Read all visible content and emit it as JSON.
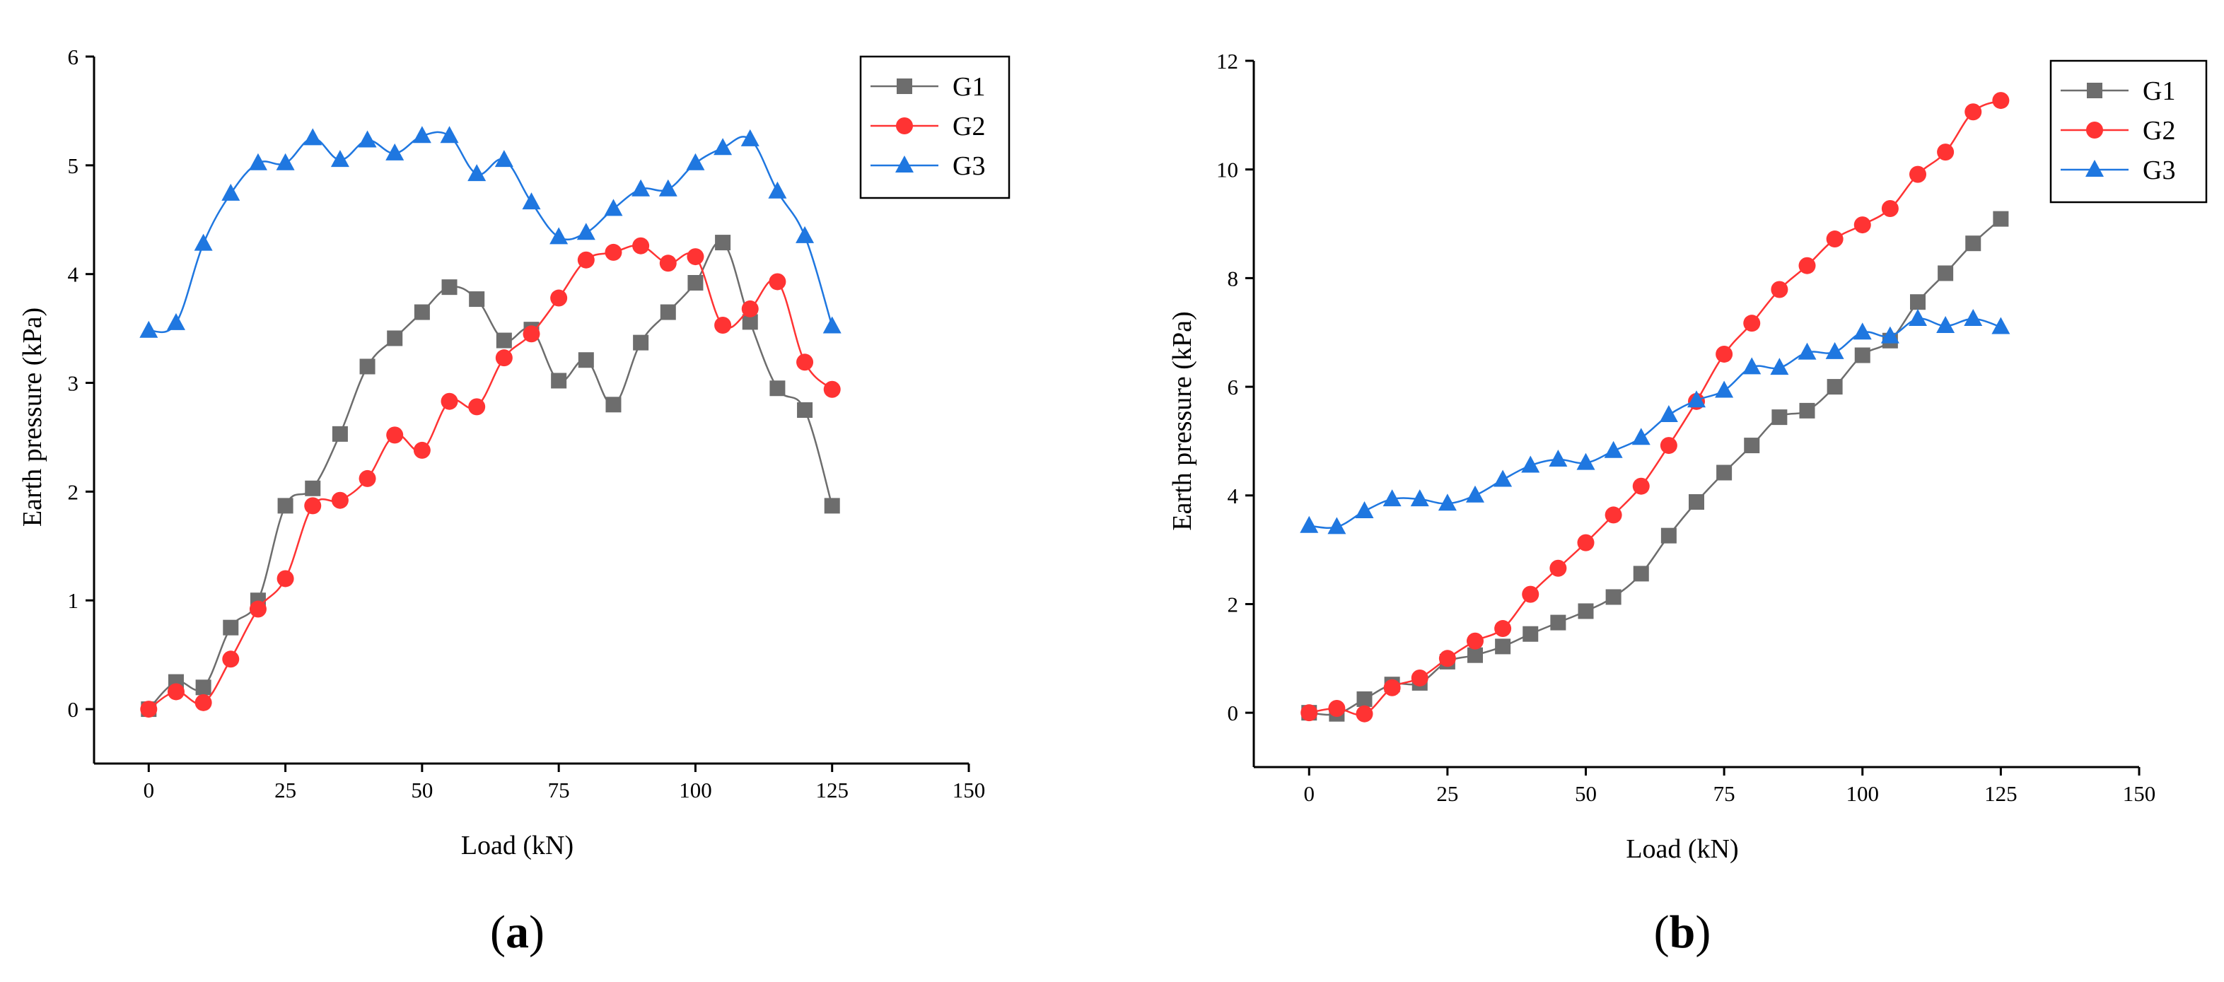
{
  "chart_data": [
    {
      "type": "line",
      "panel_label": "(a)",
      "panel_letter": "a",
      "xlabel": "Load (kN)",
      "ylabel": "Earth pressure (kPa)",
      "xlim": [
        -10,
        150
      ],
      "ylim": [
        -0.5,
        6
      ],
      "xticks": [
        0,
        25,
        50,
        75,
        100,
        125,
        150
      ],
      "yticks": [
        0,
        1,
        2,
        3,
        4,
        5,
        6
      ],
      "legend_position": "top-right",
      "x": [
        0,
        5,
        10,
        15,
        20,
        25,
        30,
        35,
        40,
        45,
        50,
        55,
        60,
        65,
        70,
        75,
        80,
        85,
        90,
        95,
        100,
        105,
        110,
        115,
        120,
        125
      ],
      "series": [
        {
          "name": "G1",
          "marker": "square",
          "color": "#6d6d6d",
          "values": [
            0,
            0.25,
            0.2,
            0.75,
            1.0,
            1.87,
            2.03,
            2.53,
            3.15,
            3.41,
            3.65,
            3.88,
            3.77,
            3.39,
            3.49,
            3.02,
            3.21,
            2.8,
            3.37,
            3.65,
            3.92,
            4.29,
            3.56,
            2.95,
            2.75,
            1.87
          ]
        },
        {
          "name": "G2",
          "marker": "circle",
          "color": "#ff3333",
          "values": [
            0,
            0.16,
            0.06,
            0.46,
            0.92,
            1.2,
            1.87,
            1.92,
            2.12,
            2.52,
            2.38,
            2.83,
            2.78,
            3.23,
            3.45,
            3.78,
            4.13,
            4.2,
            4.26,
            4.1,
            4.16,
            3.53,
            3.68,
            3.93,
            3.19,
            2.94
          ]
        },
        {
          "name": "G3",
          "marker": "triangle",
          "color": "#1f77e0",
          "values": [
            3.48,
            3.55,
            4.28,
            4.74,
            5.02,
            5.02,
            5.25,
            5.05,
            5.23,
            5.11,
            5.27,
            5.27,
            4.92,
            5.05,
            4.66,
            4.34,
            4.38,
            4.6,
            4.78,
            4.78,
            5.02,
            5.16,
            5.24,
            4.76,
            4.35,
            3.52
          ]
        }
      ]
    },
    {
      "type": "line",
      "panel_label": "(b)",
      "panel_letter": "b",
      "xlabel": "Load (kN)",
      "ylabel": "Earth pressure (kPa)",
      "xlim": [
        -10,
        150
      ],
      "ylim": [
        -1,
        12
      ],
      "xticks": [
        0,
        25,
        50,
        75,
        100,
        125,
        150
      ],
      "yticks": [
        0,
        2,
        4,
        6,
        8,
        10,
        12
      ],
      "legend_position": "top-right",
      "x": [
        0,
        5,
        10,
        15,
        20,
        25,
        30,
        35,
        40,
        45,
        50,
        55,
        60,
        65,
        70,
        75,
        80,
        85,
        90,
        95,
        100,
        105,
        110,
        115,
        120,
        125
      ],
      "series": [
        {
          "name": "G1",
          "marker": "square",
          "color": "#6d6d6d",
          "values": [
            0,
            -0.02,
            0.25,
            0.52,
            0.55,
            0.94,
            1.06,
            1.22,
            1.45,
            1.66,
            1.87,
            2.13,
            2.56,
            3.26,
            3.88,
            4.42,
            4.92,
            5.44,
            5.56,
            6.0,
            6.58,
            6.85,
            7.56,
            8.09,
            8.64,
            9.09
          ]
        },
        {
          "name": "G2",
          "marker": "circle",
          "color": "#ff3333",
          "values": [
            0,
            0.08,
            -0.02,
            0.46,
            0.64,
            1.0,
            1.32,
            1.55,
            2.18,
            2.66,
            3.13,
            3.64,
            4.17,
            4.92,
            5.73,
            6.6,
            7.17,
            7.79,
            8.23,
            8.72,
            8.98,
            9.28,
            9.91,
            10.32,
            11.06,
            11.27
          ]
        },
        {
          "name": "G3",
          "marker": "triangle",
          "color": "#1f77e0",
          "values": [
            3.44,
            3.42,
            3.71,
            3.93,
            3.93,
            3.85,
            4.0,
            4.29,
            4.55,
            4.66,
            4.6,
            4.82,
            5.06,
            5.48,
            5.75,
            5.93,
            6.36,
            6.35,
            6.63,
            6.64,
            7.0,
            6.93,
            7.25,
            7.12,
            7.25,
            7.1
          ]
        }
      ]
    }
  ]
}
